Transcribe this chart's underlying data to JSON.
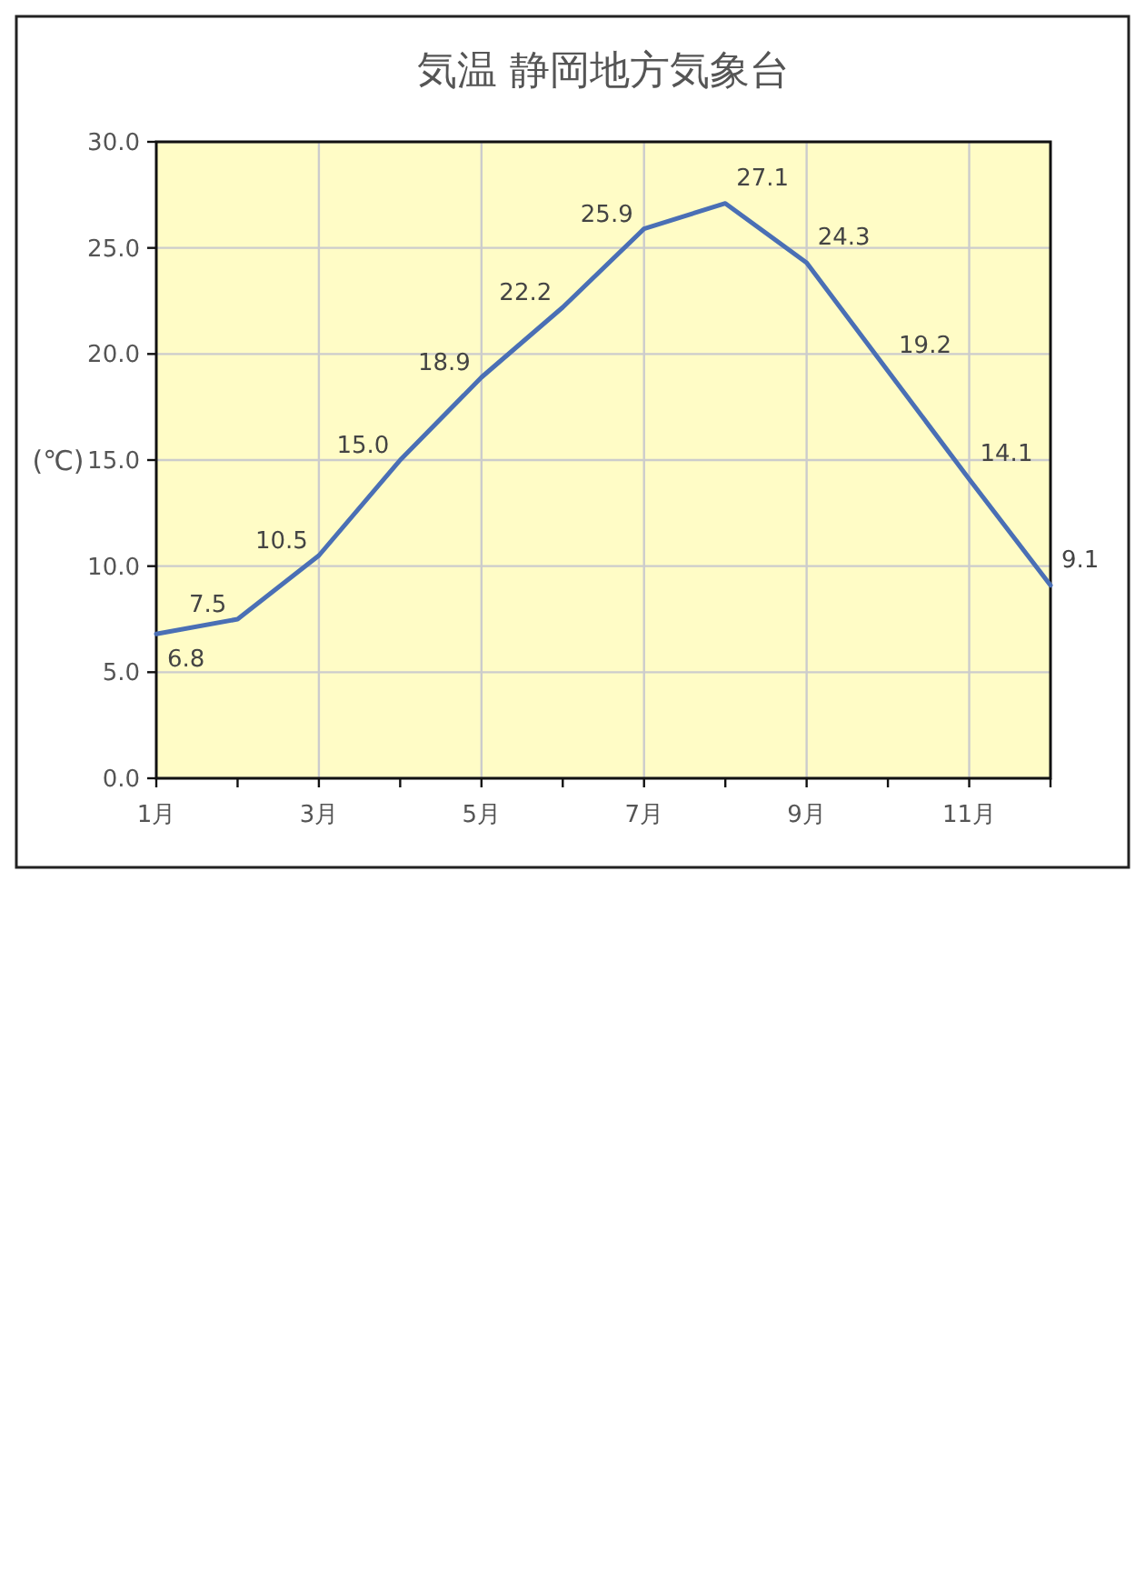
{
  "chart_data": {
    "type": "line",
    "title": "気温 静岡地方気象台",
    "ylabel": "(℃)",
    "categories": [
      "1月",
      null,
      "3月",
      null,
      "5月",
      null,
      "7月",
      null,
      "9月",
      null,
      "11月",
      null
    ],
    "series": [
      {
        "color": "#4a6fb5",
        "values": [
          6.8,
          7.5,
          10.5,
          15.0,
          18.9,
          22.2,
          25.9,
          27.1,
          24.3,
          19.2,
          14.1,
          9.1
        ],
        "value_labels": [
          "6.8",
          "7.5",
          "10.5",
          "15.0",
          "18.9",
          "22.2",
          "25.9",
          "27.1",
          "24.3",
          "19.2",
          "14.1",
          "9.1"
        ]
      }
    ],
    "ylim": [
      0,
      30
    ],
    "yticks": [
      {
        "value": 0,
        "label": "0.0"
      },
      {
        "value": 5,
        "label": "5.0"
      },
      {
        "value": 10,
        "label": "10.0"
      },
      {
        "value": 15,
        "label": "15.0"
      },
      {
        "value": 20,
        "label": "20.0"
      },
      {
        "value": 25,
        "label": "25.0"
      },
      {
        "value": 30,
        "label": "30.0"
      }
    ],
    "grid": true,
    "marker": "none",
    "line_style": "solid"
  }
}
